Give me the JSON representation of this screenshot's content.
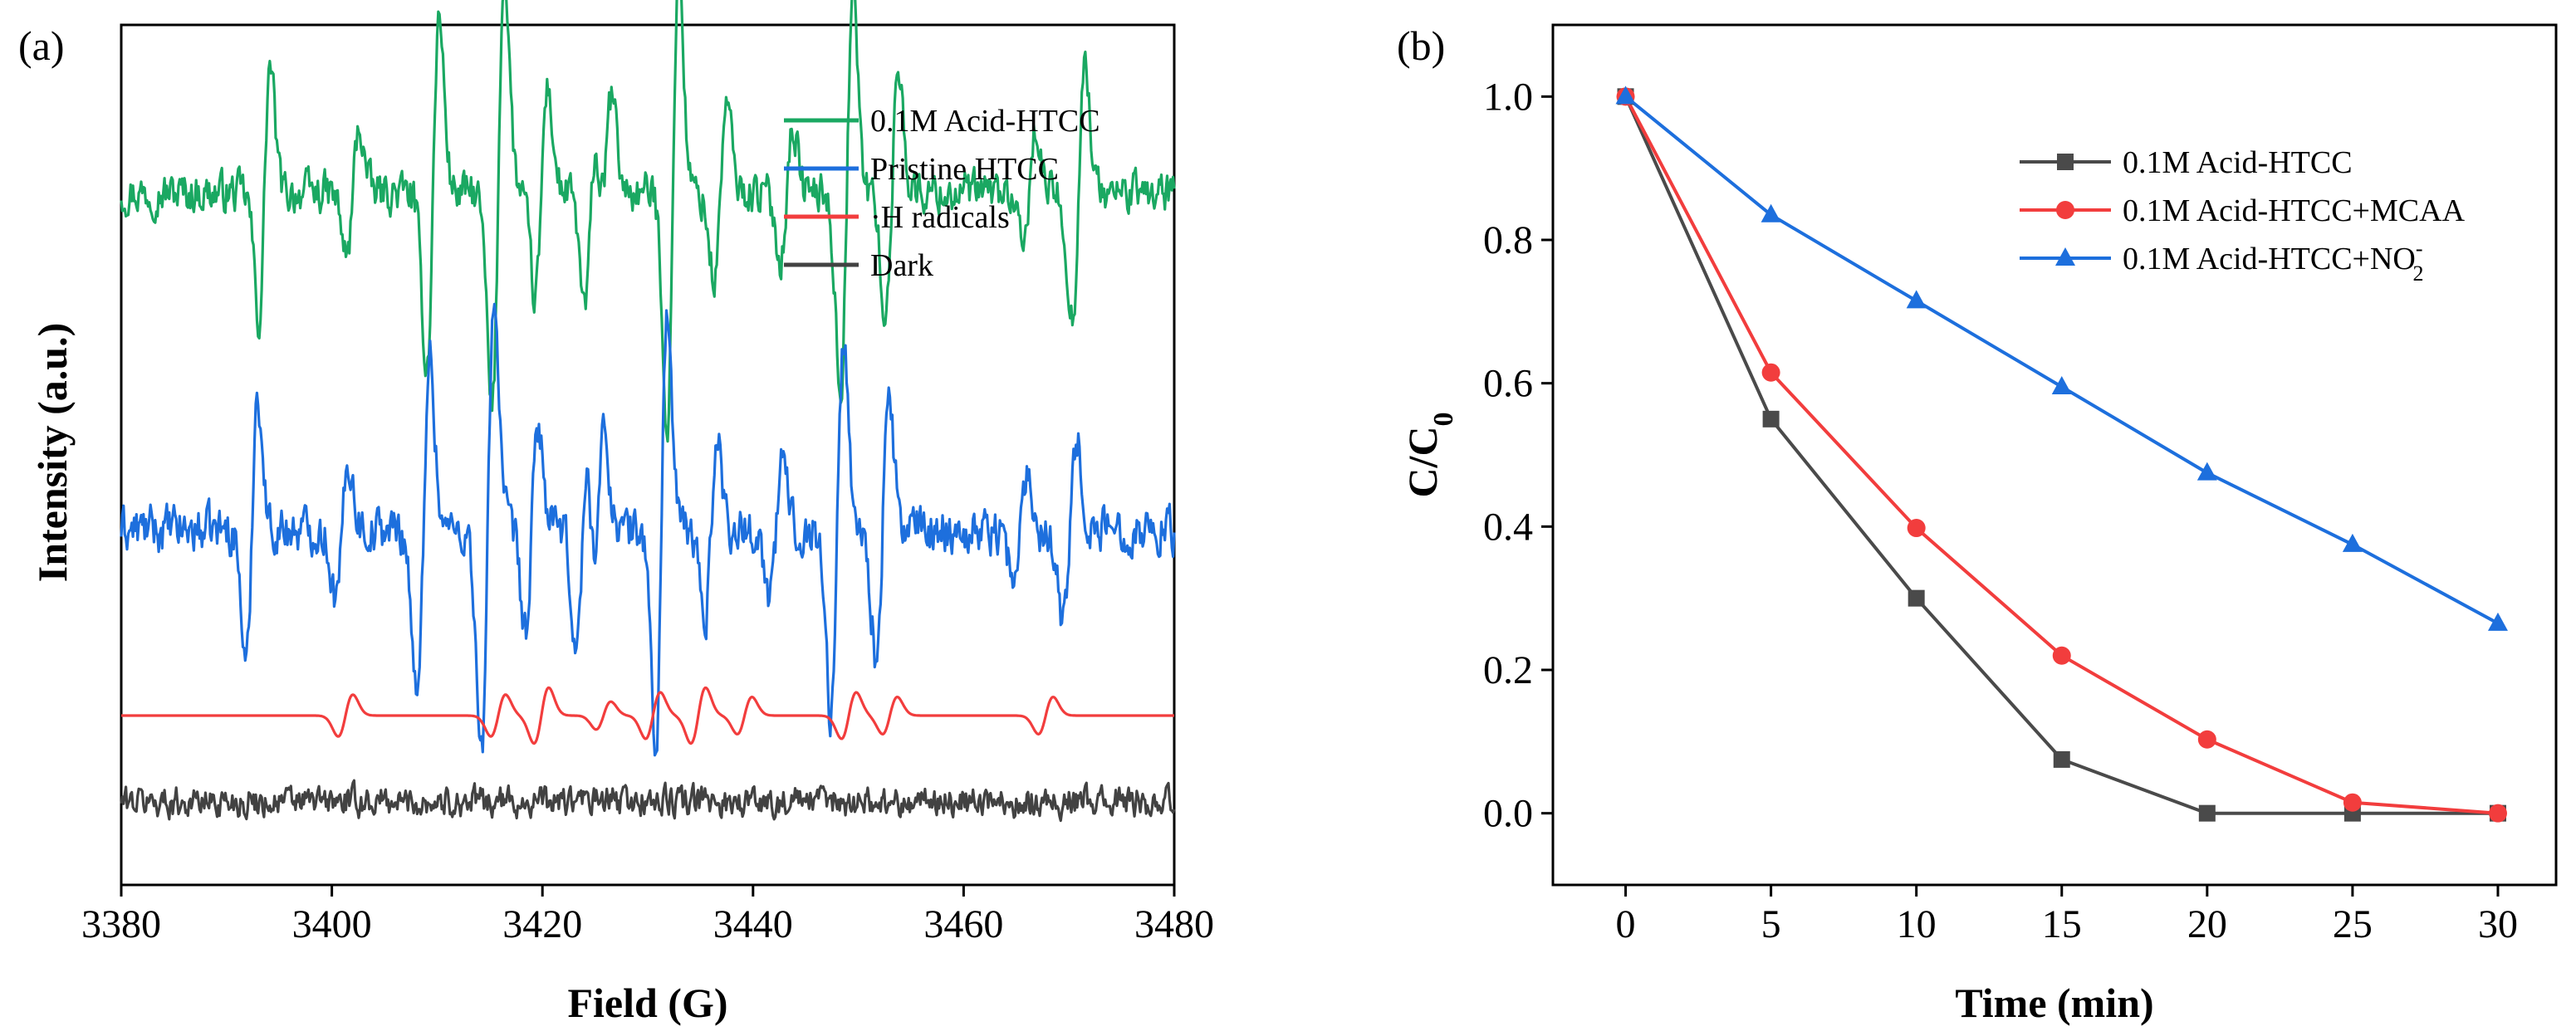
{
  "chart_data": [
    {
      "type": "line",
      "panel_label": "(a)",
      "title": "",
      "xlabel": "Field (G)",
      "ylabel": "Intensity (a.u.)",
      "xlim": [
        3380,
        3480
      ],
      "xticks": [
        3380,
        3400,
        3420,
        3440,
        3460,
        3480
      ],
      "yticks_shown": false,
      "legend_position": "top-right",
      "series": [
        {
          "name": "0.1M Acid-HTCC",
          "color": "#1aa862",
          "baseline_offset": 3.0,
          "noise": 0.075,
          "lines": [
            {
              "x": 3393.6,
              "amp": 0.55,
              "width": 0.55
            },
            {
              "x": 3402.0,
              "amp": 0.28,
              "width": 0.6
            },
            {
              "x": 3409.6,
              "amp": 0.75,
              "width": 0.6
            },
            {
              "x": 3415.8,
              "amp": 0.95,
              "width": 0.6
            },
            {
              "x": 3419.9,
              "amp": 0.45,
              "width": 0.6
            },
            {
              "x": 3424.6,
              "amp": 0.5,
              "width": 0.6
            },
            {
              "x": 3426.0,
              "amp": 0.4,
              "width": 0.6
            },
            {
              "x": 3432.4,
              "amp": 1.0,
              "width": 0.55
            },
            {
              "x": 3436.9,
              "amp": 0.38,
              "width": 0.6
            },
            {
              "x": 3443.2,
              "amp": 0.28,
              "width": 0.6
            },
            {
              "x": 3448.9,
              "amp": 0.85,
              "width": 0.6
            },
            {
              "x": 3453.2,
              "amp": 0.55,
              "width": 0.6
            },
            {
              "x": 3466.2,
              "amp": 0.25,
              "width": 0.6
            },
            {
              "x": 3470.9,
              "amp": 0.55,
              "width": 0.6
            }
          ]
        },
        {
          "name": "Pristine HTCC",
          "color": "#1d6fdd",
          "baseline_offset": 1.55,
          "noise": 0.085,
          "lines": [
            {
              "x": 3392.4,
              "amp": 0.6,
              "width": 0.55
            },
            {
              "x": 3401.0,
              "amp": 0.3,
              "width": 0.6
            },
            {
              "x": 3408.7,
              "amp": 0.75,
              "width": 0.6
            },
            {
              "x": 3414.8,
              "amp": 1.0,
              "width": 0.6
            },
            {
              "x": 3419.0,
              "amp": 0.45,
              "width": 0.6
            },
            {
              "x": 3423.8,
              "amp": 0.5,
              "width": 0.6
            },
            {
              "x": 3425.3,
              "amp": 0.4,
              "width": 0.6
            },
            {
              "x": 3431.3,
              "amp": 0.95,
              "width": 0.55
            },
            {
              "x": 3436.0,
              "amp": 0.38,
              "width": 0.6
            },
            {
              "x": 3442.2,
              "amp": 0.3,
              "width": 0.6
            },
            {
              "x": 3448.0,
              "amp": 0.8,
              "width": 0.6
            },
            {
              "x": 3452.3,
              "amp": 0.55,
              "width": 0.6
            },
            {
              "x": 3465.4,
              "amp": 0.25,
              "width": 0.6
            },
            {
              "x": 3470.1,
              "amp": 0.4,
              "width": 0.6
            }
          ]
        },
        {
          "name": "·H radicals",
          "color": "#f23d3d",
          "baseline_offset": 0.75,
          "noise": 0.0,
          "lines": [
            {
              "x": 3401.3,
              "amp": 0.09,
              "width": 0.7
            },
            {
              "x": 3415.8,
              "amp": 0.09,
              "width": 0.7
            },
            {
              "x": 3419.9,
              "amp": 0.12,
              "width": 0.7
            },
            {
              "x": 3425.8,
              "amp": 0.06,
              "width": 0.7
            },
            {
              "x": 3430.5,
              "amp": 0.1,
              "width": 0.7
            },
            {
              "x": 3434.8,
              "amp": 0.12,
              "width": 0.7
            },
            {
              "x": 3439.2,
              "amp": 0.08,
              "width": 0.7
            },
            {
              "x": 3449.1,
              "amp": 0.1,
              "width": 0.7
            },
            {
              "x": 3453.0,
              "amp": 0.08,
              "width": 0.7
            },
            {
              "x": 3467.8,
              "amp": 0.08,
              "width": 0.7
            }
          ]
        },
        {
          "name": "Dark",
          "color": "#424242",
          "baseline_offset": 0.38,
          "noise": 0.055,
          "lines": []
        }
      ]
    },
    {
      "type": "line",
      "panel_label": "(b)",
      "title": "",
      "xlabel": "Time (min)",
      "ylabel": "C/C",
      "ylabel_subscript": "0",
      "xlim": [
        -2.5,
        32
      ],
      "ylim": [
        -0.1,
        1.1
      ],
      "xticks": [
        0,
        5,
        10,
        15,
        20,
        25,
        30
      ],
      "yticks": [
        0.0,
        0.2,
        0.4,
        0.6,
        0.8,
        1.0
      ],
      "ytick_labels": [
        "0.0",
        "0.2",
        "0.4",
        "0.6",
        "0.8",
        "1.0"
      ],
      "legend_position": "top-right",
      "x": [
        0,
        5,
        10,
        15,
        20,
        25,
        30
      ],
      "series": [
        {
          "name": "0.1M Acid-HTCC",
          "name_superscript": "",
          "name_subscript": "",
          "color": "#4a4a4a",
          "marker": "square",
          "values": [
            1.0,
            0.55,
            0.3,
            0.075,
            0.0,
            0.0,
            0.0
          ]
        },
        {
          "name": "0.1M Acid-HTCC+MCAA",
          "name_superscript": "",
          "name_subscript": "",
          "color": "#f23d3d",
          "marker": "circle",
          "values": [
            1.0,
            0.615,
            0.398,
            0.22,
            0.103,
            0.015,
            0.0
          ]
        },
        {
          "name": "0.1M Acid-HTCC+NO",
          "name_superscript": "-",
          "name_subscript": "2",
          "color": "#1d6fdd",
          "marker": "triangle",
          "values": [
            1.0,
            0.835,
            0.715,
            0.595,
            0.475,
            0.375,
            0.265
          ]
        }
      ]
    }
  ]
}
